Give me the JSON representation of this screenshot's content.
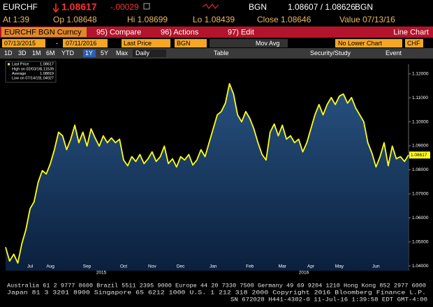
{
  "header": {
    "ticker": "EURCHF",
    "last": "1.08617",
    "change": "-.00029",
    "source": "BGN",
    "bid_ask": "1.08607 / 1.08626",
    "source2": "BGN",
    "time": "At 1:39",
    "open": "Op 1.08648",
    "high": "Hi 1.08699",
    "low": "Lo 1.08439",
    "close": "Close 1.08646",
    "value_date": "Value 07/13/16"
  },
  "toolbar": {
    "security": "EURCHF BGN Curncy",
    "compare": "95) Compare",
    "actions": "96) Actions",
    "edit": "97) Edit",
    "chart_kind": "Line Chart",
    "start_date": "07/13/2015",
    "dash": "-",
    "end_date": "07/11/2016",
    "field": "Last Price",
    "pricing": "BGN",
    "study": "Mov Avg",
    "lower": "No Lower Chart",
    "currency": "CHF",
    "periods": [
      "1D",
      "3D",
      "1M",
      "6M",
      "YTD",
      "1Y",
      "5Y",
      "Max"
    ],
    "active_period": "1Y",
    "frequency": "Daily",
    "table": "Table",
    "security_study": "Security/Study",
    "event": "Event"
  },
  "chart_data": {
    "type": "line",
    "categories": [
      null,
      null,
      null,
      null,
      null,
      null,
      "Jul",
      null,
      null,
      null,
      null,
      "Aug",
      null,
      null,
      null,
      null,
      null,
      null,
      null,
      null,
      "Sep",
      null,
      null,
      null,
      null,
      null,
      null,
      null,
      null,
      "Oct",
      null,
      null,
      null,
      null,
      null,
      null,
      "Nov",
      null,
      null,
      null,
      null,
      null,
      null,
      "Dec",
      null,
      null,
      null,
      null,
      null,
      null,
      null,
      "Jan",
      null,
      null,
      null,
      null,
      null,
      null,
      null,
      null,
      "Feb",
      null,
      null,
      null,
      null,
      null,
      null,
      null,
      "Mar",
      null,
      null,
      null,
      null,
      null,
      null,
      "Apr",
      null,
      null,
      null,
      null,
      null,
      null,
      "May",
      null,
      null,
      null,
      null,
      null,
      null,
      null,
      null,
      "Jun",
      null,
      null,
      null,
      null,
      null,
      null,
      null,
      null
    ],
    "years": [
      "2015",
      "2016"
    ],
    "series": [
      {
        "name": "Last Price",
        "color": "#ffff1a",
        "values": [
          1.0478,
          1.042,
          1.0449,
          1.0412,
          1.0493,
          1.0551,
          1.0638,
          1.0667,
          1.0748,
          1.0797,
          1.0783,
          1.0826,
          1.0884,
          1.0957,
          1.0942,
          1.0884,
          1.0928,
          1.0986,
          1.0913,
          1.0957,
          1.0899,
          1.0971,
          1.0933,
          1.0899,
          1.0942,
          1.0913,
          1.0933,
          1.0913,
          1.0928,
          1.0841,
          1.0817,
          1.0855,
          1.0835,
          1.0864,
          1.0826,
          1.0846,
          1.0875,
          1.0835,
          1.0855,
          1.0899,
          1.0826,
          1.0846,
          1.0812,
          1.0855,
          1.0841,
          1.0864,
          1.082,
          1.0841,
          1.0884,
          1.0855,
          1.0913,
          1.0971,
          1.1029,
          1.1043,
          1.1078,
          1.1159,
          1.1116,
          1.1029,
          1.1,
          1.1043,
          1.1014,
          1.0971,
          1.0913,
          1.0864,
          1.0841,
          1.0957,
          1.0991,
          1.0942,
          1.0986,
          1.0928,
          1.0942,
          1.0913,
          1.0928,
          1.0875,
          1.0913,
          1.0971,
          1.1029,
          1.1072,
          1.1029,
          1.1072,
          1.1101,
          1.1072,
          1.1107,
          1.1116,
          1.1078,
          1.1101,
          1.1058,
          1.1029,
          1.1,
          1.0913,
          1.087,
          1.0812,
          1.0855,
          1.0913,
          1.0817,
          1.0899,
          1.0846,
          1.0855,
          1.0835,
          1.08617
        ]
      }
    ],
    "last_price_label": "1.08617",
    "legend_stats": [
      {
        "label": "High on 02/03/16",
        "value": "1.11539"
      },
      {
        "label": "Average",
        "value": "1.08819"
      },
      {
        "label": "Low on 07/14/15",
        "value": "1.04027"
      }
    ],
    "ylim": [
      1.038,
      1.124
    ],
    "yticks": [
      {
        "value": 1.04,
        "label": "1.04000"
      },
      {
        "value": 1.05,
        "label": "1.05000"
      },
      {
        "value": 1.06,
        "label": "1.06000"
      },
      {
        "value": 1.07,
        "label": "1.07000"
      },
      {
        "value": 1.08,
        "label": "1.08000"
      },
      {
        "value": 1.09,
        "label": "1.09000"
      },
      {
        "value": 1.1,
        "label": "1.10000"
      },
      {
        "value": 1.11,
        "label": "1.11000"
      },
      {
        "value": 1.12,
        "label": "1.12000"
      }
    ]
  },
  "footer": {
    "lines": [
      "Australia 61 2 9777 8600 Brazil 5511 2395 9000 Europe 44 20 7330 7500 Germany 49 69 9204 1210 Hong Kong 852 2977 6000",
      "Japan 81 3 3201 8900        Singapore 65 6212 1000        U.S. 1 212 318 2000        Copyright 2016 Bloomberg Finance L.P.",
      "SN 672028 H441-4302-0 11-Jul-16  1:39:58 EDT  GMT-4:00"
    ]
  }
}
